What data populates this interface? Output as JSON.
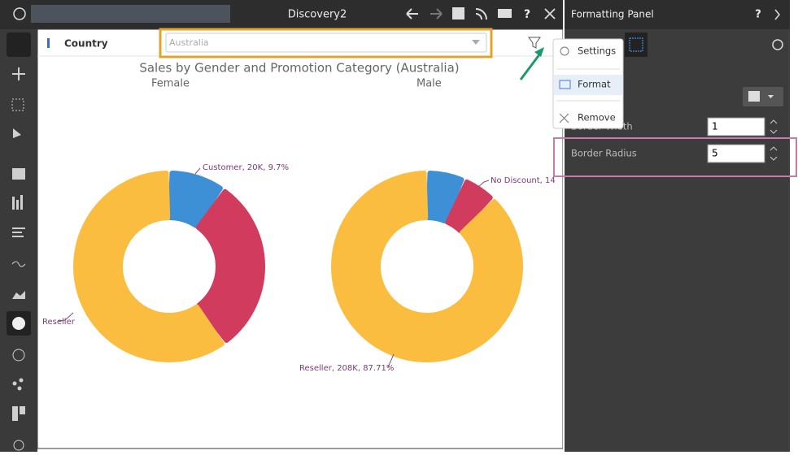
{
  "window": {
    "title": "Discovery2",
    "help": "?"
  },
  "filter": {
    "label": "Country",
    "value": "Australia"
  },
  "chart": {
    "title": "Sales by Gender and Promotion Category (Australia)",
    "panels": [
      {
        "name": "Female",
        "slices": [
          {
            "value": 9.7,
            "color": "#3d8fd6",
            "label": "Customer, 20K, 9.7%"
          },
          {
            "value": 30.3,
            "color": "#d13b5e"
          },
          {
            "value": 60,
            "color": "#fbbd40",
            "label": "Reseller"
          }
        ]
      },
      {
        "name": "Male",
        "slices": [
          {
            "value": 6.5,
            "color": "#3d8fd6"
          },
          {
            "value": 5.79,
            "color": "#d13b5e",
            "label": "No Discount, 14"
          },
          {
            "value": 87.71,
            "color": "#fbbd40",
            "label": "Reseller, 208K, 87.71%"
          }
        ]
      }
    ]
  },
  "menu": {
    "items": [
      "Settings",
      "Format",
      "Remove"
    ]
  },
  "panel": {
    "title": "Formatting Panel",
    "help": "?",
    "fields": [
      {
        "label": "Border Width",
        "value": "1"
      },
      {
        "label": "Border Radius",
        "value": "5"
      }
    ]
  }
}
